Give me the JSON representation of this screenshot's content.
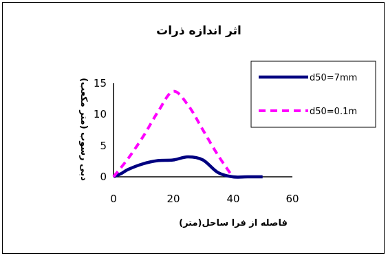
{
  "chart_data": {
    "type": "line",
    "title": "اثر اندازه ذرات",
    "xlabel": "فاصله از فرا ساحل(متر)",
    "ylabel": "دبی رسوب (متر مکعب)",
    "xlim": [
      0,
      60
    ],
    "ylim": [
      0,
      15
    ],
    "x_ticks": [
      "0",
      "20",
      "40",
      "60"
    ],
    "y_ticks": [
      "0",
      "5",
      "10",
      "15"
    ],
    "grid": false,
    "legend_position": "top-right",
    "series": [
      {
        "name": "d50=7mm",
        "color": "#000080",
        "line_style": "solid",
        "x": [
          0,
          2.5,
          5,
          10,
          15,
          20,
          25,
          30,
          35,
          40,
          45,
          50
        ],
        "y": [
          0,
          0.5,
          1.2,
          2.1,
          2.6,
          2.7,
          3.2,
          2.7,
          0.7,
          0,
          0,
          0
        ]
      },
      {
        "name": "d50=0.1m",
        "color": "#ff00ff",
        "line_style": "dashed",
        "x": [
          0,
          5,
          10,
          15,
          20,
          25,
          30,
          35,
          40
        ],
        "y": [
          0,
          3,
          6.5,
          10.5,
          13.7,
          11.5,
          7.5,
          3.5,
          0
        ]
      }
    ]
  }
}
